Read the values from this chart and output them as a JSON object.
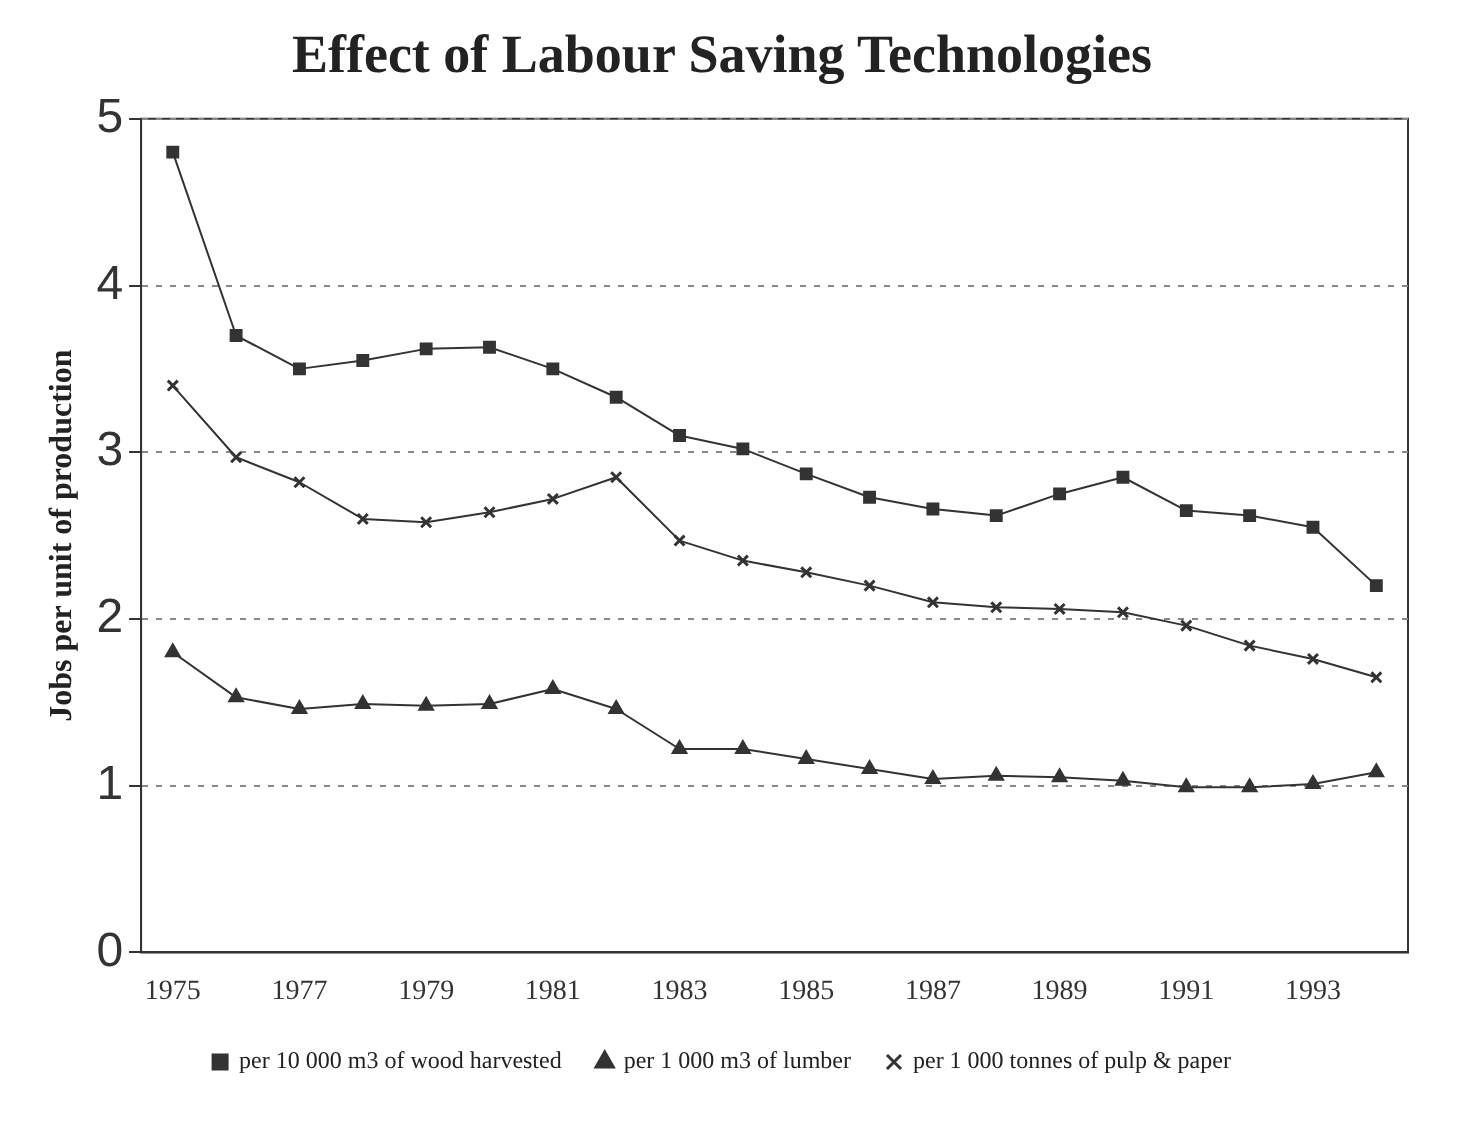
{
  "chart_data": {
    "type": "line",
    "title": "Effect of Labour Saving Technologies",
    "ylabel": "Jobs per unit of production",
    "categories": [
      "1975",
      null,
      "1977",
      null,
      "1979",
      null,
      "1981",
      null,
      "1983",
      null,
      "1985",
      null,
      "1987",
      null,
      "1989",
      null,
      "1991",
      null,
      "1993",
      null
    ],
    "series": [
      {
        "name": "per 10 000 m3 of wood harvested",
        "color": "#333333",
        "marker": "square",
        "values": [
          4.8,
          3.7,
          3.5,
          3.55,
          3.62,
          3.63,
          3.5,
          3.33,
          3.1,
          3.02,
          2.87,
          2.73,
          2.66,
          2.62,
          2.75,
          2.85,
          2.65,
          2.62,
          2.55,
          2.2
        ]
      },
      {
        "name": "per 1 000 m3 of lumber",
        "color": "#333333",
        "marker": "triangle",
        "values": [
          1.8,
          1.53,
          1.46,
          1.49,
          1.48,
          1.49,
          1.58,
          1.46,
          1.22,
          1.22,
          1.16,
          1.1,
          1.04,
          1.06,
          1.05,
          1.03,
          0.99,
          0.99,
          1.01,
          1.08
        ]
      },
      {
        "name": "per 1 000 tonnes of pulp & paper",
        "color": "#333333",
        "marker": "cross",
        "values": [
          3.4,
          2.97,
          2.82,
          2.6,
          2.58,
          2.64,
          2.72,
          2.85,
          2.47,
          2.35,
          2.28,
          2.2,
          2.1,
          2.07,
          2.06,
          2.04,
          1.96,
          1.84,
          1.76,
          1.65
        ]
      }
    ],
    "ylim": [
      0,
      5
    ],
    "yticks": [
      0,
      1,
      2,
      3,
      4,
      5
    ],
    "grid": "y",
    "legend": "bottom",
    "line_style": "solid"
  }
}
